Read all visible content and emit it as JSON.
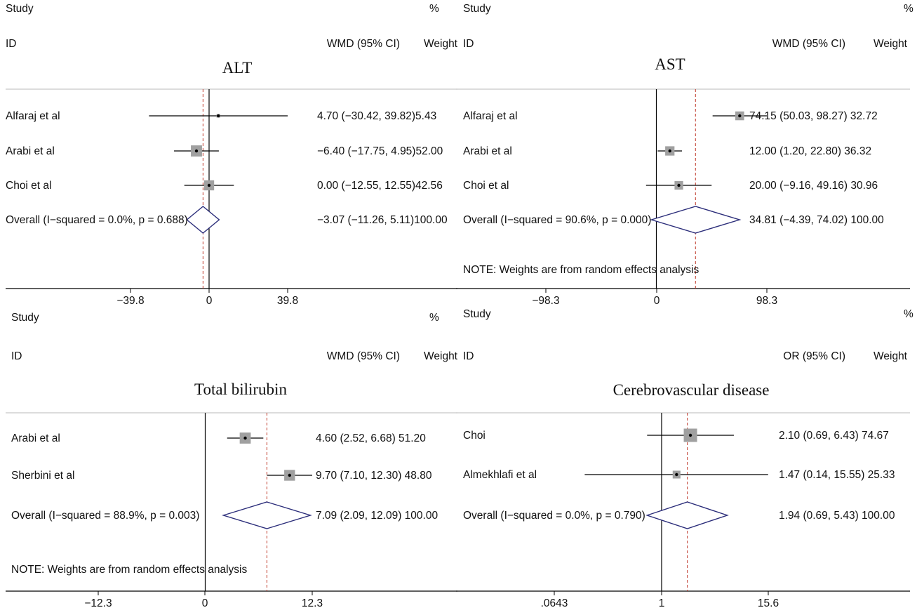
{
  "chart_data": [
    {
      "type": "forest",
      "title": "ALT",
      "header": {
        "study": "Study",
        "id": "ID",
        "effect": "WMD (95% CI)",
        "pct": "%",
        "weight": "Weight"
      },
      "scale": "linear",
      "xlim": [
        -39.8,
        39.8
      ],
      "xticks": [
        "-39.8",
        "0",
        "39.8"
      ],
      "null_value": 0,
      "rows": [
        {
          "label": "Alfaraj et al",
          "est": 4.7,
          "lo": -30.42,
          "hi": 39.82,
          "weight": 5.43,
          "text": "4.70 (−30.42, 39.82)5.43"
        },
        {
          "label": "Arabi et al",
          "est": -6.4,
          "lo": -17.75,
          "hi": 4.95,
          "weight": 52.0,
          "text": "−6.40 (−17.75, 4.95)52.00"
        },
        {
          "label": "Choi et al",
          "est": 0.0,
          "lo": -12.55,
          "hi": 12.55,
          "weight": 42.56,
          "text": "0.00 (−12.55, 12.55)42.56"
        }
      ],
      "overall": {
        "label": "Overall  (I−squared = 0.0%, p = 0.688)",
        "est": -3.07,
        "lo": -11.26,
        "hi": 5.11,
        "text": "−3.07 (−11.26, 5.11)100.00"
      },
      "note": ""
    },
    {
      "type": "forest",
      "title": "AST",
      "header": {
        "study": "Study",
        "id": "ID",
        "effect": "WMD (95% CI)",
        "pct": "%",
        "weight": "Weight"
      },
      "scale": "linear",
      "xlim": [
        -98.3,
        98.3
      ],
      "xticks": [
        "-98.3",
        "0",
        "98.3"
      ],
      "null_value": 0,
      "rows": [
        {
          "label": "Alfaraj et al",
          "est": 74.15,
          "lo": 50.03,
          "hi": 98.27,
          "weight": 32.72,
          "text": "74.15 (50.03, 98.27) 32.72"
        },
        {
          "label": "Arabi et al",
          "est": 12.0,
          "lo": 1.2,
          "hi": 22.8,
          "weight": 36.32,
          "text": "12.00 (1.20, 22.80) 36.32"
        },
        {
          "label": "Choi et al",
          "est": 20.0,
          "lo": -9.16,
          "hi": 49.16,
          "weight": 30.96,
          "text": "20.00 (−9.16, 49.16) 30.96"
        }
      ],
      "overall": {
        "label": "Overall  (I−squared = 90.6%, p = 0.000)",
        "est": 34.81,
        "lo": -4.39,
        "hi": 74.02,
        "text": "34.81 (−4.39, 74.02) 100.00"
      },
      "note": "NOTE: Weights are from random effects analysis"
    },
    {
      "type": "forest",
      "title": "Total bilirubin",
      "header": {
        "study": "Study",
        "id": "ID",
        "effect": "WMD (95% CI)",
        "pct": "%",
        "weight": "Weight"
      },
      "scale": "linear",
      "xlim": [
        -12.3,
        12.3
      ],
      "xticks": [
        "-12.3",
        "0",
        "12.3"
      ],
      "null_value": 0,
      "rows": [
        {
          "label": "Arabi et al",
          "est": 4.6,
          "lo": 2.52,
          "hi": 6.68,
          "weight": 51.2,
          "text": "4.60 (2.52, 6.68)  51.20"
        },
        {
          "label": "Sherbini et al",
          "est": 9.7,
          "lo": 7.1,
          "hi": 12.3,
          "weight": 48.8,
          "text": "9.70 (7.10, 12.30)  48.80"
        }
      ],
      "overall": {
        "label": "Overall  (I−squared = 88.9%, p = 0.003)",
        "est": 7.09,
        "lo": 2.09,
        "hi": 12.09,
        "text": "7.09 (2.09, 12.09)  100.00"
      },
      "note": "NOTE: Weights are from random effects analysis"
    },
    {
      "type": "forest",
      "title": "Cerebrovascular disease",
      "header": {
        "study": "Study",
        "id": "ID",
        "effect": "OR (95% CI)",
        "pct": "%",
        "weight": "Weight"
      },
      "scale": "log",
      "xlim": [
        0.0643,
        15.6
      ],
      "xticks": [
        ".0643",
        "1",
        "15.6"
      ],
      "null_value": 1,
      "rows": [
        {
          "label": "Choi",
          "est": 2.1,
          "lo": 0.69,
          "hi": 6.43,
          "weight": 74.67,
          "text": "2.10 (0.69, 6.43)  74.67"
        },
        {
          "label": "Almekhlafi et al",
          "est": 1.47,
          "lo": 0.14,
          "hi": 15.55,
          "weight": 25.33,
          "text": "1.47 (0.14, 15.55) 25.33"
        }
      ],
      "overall": {
        "label": "Overall  (I−squared = 0.0%, p = 0.790)",
        "est": 1.94,
        "lo": 0.69,
        "hi": 5.43,
        "text": "1.94 (0.69, 5.43)  100.00"
      },
      "note": ""
    }
  ],
  "colors": {
    "diamond": "#2b2d7a",
    "pooled_line": "#c0392b",
    "weight_box": "#a0a0a0",
    "axis": "#000000",
    "divider": "#c8c8c8"
  }
}
